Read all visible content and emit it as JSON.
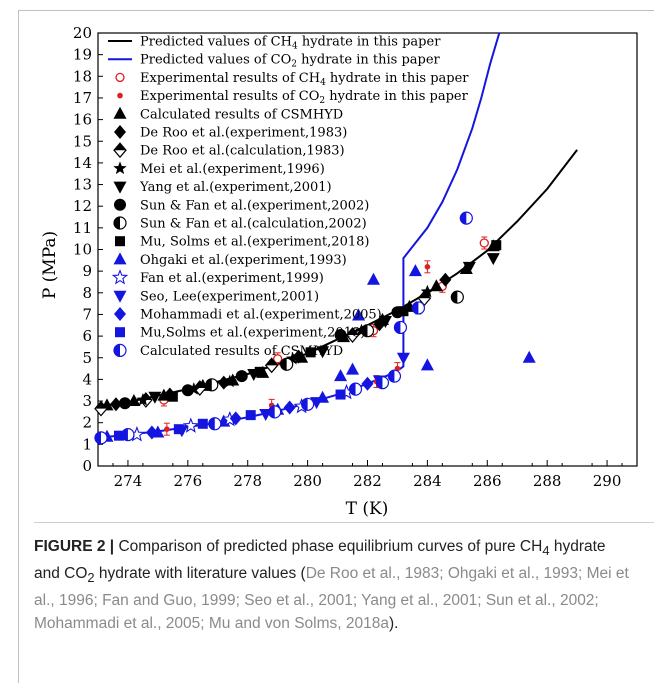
{
  "chart_data": {
    "type": "scatter",
    "xlabel": "T  (K)",
    "ylabel": "P  (MPa)",
    "xlim": [
      273,
      291
    ],
    "ylim": [
      0,
      20
    ],
    "xticks": [
      "274",
      "276",
      "278",
      "280",
      "282",
      "284",
      "286",
      "288",
      "290"
    ],
    "yticks": [
      "0",
      "1",
      "2",
      "3",
      "4",
      "5",
      "6",
      "7",
      "8",
      "9",
      "10",
      "11",
      "12",
      "13",
      "14",
      "15",
      "16",
      "17",
      "18",
      "19",
      "20"
    ],
    "legend_position": "top-left",
    "colors": {
      "ch4": "#000000",
      "co2": "#1515e0",
      "exp": "#e02020"
    },
    "lines": [
      {
        "name": "Predicted values of CH4 hydrate in this paper",
        "color": "#000000",
        "x": [
          273.0,
          274.0,
          275.0,
          276.0,
          277.0,
          278.0,
          279.0,
          280.0,
          281.0,
          282.0,
          283.0,
          284.0,
          285.0,
          286.0,
          287.0,
          288.0,
          289.0
        ],
        "y": [
          2.75,
          2.95,
          3.25,
          3.55,
          3.9,
          4.25,
          4.7,
          5.2,
          5.85,
          6.5,
          7.2,
          8.0,
          8.9,
          9.95,
          11.3,
          12.8,
          14.6
        ]
      },
      {
        "name": "Predicted values of CO2 hydrate in this paper",
        "color": "#1515e0",
        "x": [
          273.0,
          274.0,
          275.0,
          276.0,
          277.0,
          278.0,
          279.0,
          280.0,
          281.0,
          282.0,
          282.7,
          283.1,
          283.2,
          283.2,
          284.0,
          284.5,
          285.0,
          285.5,
          285.8,
          286.1,
          286.4
        ],
        "y": [
          1.3,
          1.45,
          1.6,
          1.8,
          2.0,
          2.25,
          2.55,
          2.9,
          3.3,
          3.8,
          4.2,
          4.5,
          4.6,
          9.6,
          11.0,
          12.2,
          13.7,
          15.6,
          17.0,
          18.6,
          20.0
        ]
      }
    ],
    "series": [
      {
        "name": "Experimental results of CH4 hydrate in this paper",
        "marker": "circle-open",
        "color": "#e02020",
        "x": [
          275.2,
          279.0,
          282.2,
          283.7,
          284.5,
          285.9
        ],
        "y": [
          3.05,
          4.95,
          6.25,
          7.3,
          8.3,
          10.3
        ]
      },
      {
        "name": "Experimental results of CO2 hydrate in this paper",
        "marker": "dot",
        "color": "#e02020",
        "x": [
          275.3,
          278.8,
          282.3,
          283.0,
          284.0
        ],
        "y": [
          1.7,
          2.8,
          3.9,
          4.5,
          9.2
        ]
      },
      {
        "name": "Calculated results of CSMHYD",
        "marker": "triangle-up",
        "color": "#000000",
        "x": [
          273.3,
          274.2,
          275.2,
          276.5,
          277.5,
          278.5,
          279.8,
          281.2,
          282.5,
          283.4,
          284.3,
          285.3,
          286.2
        ],
        "y": [
          2.8,
          3.0,
          3.25,
          3.7,
          3.95,
          4.3,
          5.0,
          5.95,
          6.75,
          7.35,
          8.3,
          9.1,
          10.15
        ]
      },
      {
        "name": "De Roo et al.(experiment,1983)",
        "marker": "diamond",
        "color": "#000000",
        "x": [
          273.6,
          275.4,
          277.2,
          279.7,
          282.4,
          284.6
        ],
        "y": [
          2.85,
          3.3,
          3.85,
          5.05,
          6.55,
          8.6
        ]
      },
      {
        "name": "De Roo et al.(calculation,1983)",
        "marker": "diamond-half",
        "color": "#000000",
        "x": [
          273.1,
          274.6,
          276.4,
          278.8,
          281.5,
          283.9
        ],
        "y": [
          2.65,
          3.05,
          3.6,
          4.65,
          6.05,
          7.75
        ]
      },
      {
        "name": "Mei et al.(experiment,1996)",
        "marker": "star",
        "color": "#000000",
        "x": [
          274.5,
          276.2,
          277.4,
          279.5,
          281.8,
          284.0
        ],
        "y": [
          3.05,
          3.55,
          3.9,
          4.95,
          6.25,
          8.05
        ]
      },
      {
        "name": "Yang et al.(experiment,2001)",
        "marker": "triangle-down",
        "color": "#000000",
        "x": [
          274.9,
          278.2,
          280.5,
          282.6,
          285.4,
          286.2
        ],
        "y": [
          3.2,
          4.25,
          5.3,
          6.7,
          9.2,
          9.6
        ]
      },
      {
        "name": "Sun & Fan et al.(experiment,2002)",
        "marker": "circle",
        "color": "#000000",
        "x": [
          273.9,
          276.0,
          277.8,
          281.1,
          283.0
        ],
        "y": [
          2.9,
          3.5,
          4.15,
          6.05,
          7.1
        ]
      },
      {
        "name": "Sun & Fan et al.(calculation,2002)",
        "marker": "circle-half",
        "color": "#000000",
        "x": [
          276.8,
          279.3,
          282.0,
          285.0
        ],
        "y": [
          3.75,
          4.7,
          6.25,
          7.8
        ]
      },
      {
        "name": "Mu, Solms et al.(experiment,2018)",
        "marker": "square",
        "color": "#000000",
        "x": [
          275.5,
          278.4,
          280.1,
          283.2,
          286.3
        ],
        "y": [
          3.2,
          4.35,
          5.25,
          7.15,
          10.2
        ]
      },
      {
        "name": "Ohgaki et al.(experiment,1993)",
        "marker": "triangle-up",
        "color": "#1515e0",
        "x": [
          273.3,
          275.0,
          277.2,
          279.0,
          280.5,
          281.1,
          281.5,
          281.7,
          282.2,
          283.6,
          284.0,
          287.4
        ],
        "y": [
          1.35,
          1.55,
          2.05,
          2.6,
          3.15,
          4.15,
          4.45,
          6.95,
          8.6,
          9.0,
          4.65,
          5.0
        ]
      },
      {
        "name": "Fan et al.(experiment,1999)",
        "marker": "star-open",
        "color": "#1515e0",
        "x": [
          274.3,
          276.1,
          277.4,
          279.8,
          281.3
        ],
        "y": [
          1.45,
          1.85,
          2.15,
          2.75,
          3.4
        ]
      },
      {
        "name": "Seo, Lee(experiment,2001)",
        "marker": "triangle-down",
        "color": "#1515e0",
        "x": [
          275.8,
          278.6,
          280.3,
          282.4,
          283.2
        ],
        "y": [
          1.65,
          2.4,
          2.95,
          3.95,
          5.0
        ]
      },
      {
        "name": "Mohammadi et al.(experiment,2005)",
        "marker": "diamond",
        "color": "#1515e0",
        "x": [
          274.8,
          277.6,
          279.4,
          282.0
        ],
        "y": [
          1.55,
          2.2,
          2.7,
          3.8
        ]
      },
      {
        "name": "Mu,Solms et al.(experiment,2018)",
        "marker": "square",
        "color": "#1515e0",
        "x": [
          273.7,
          275.7,
          276.5,
          278.1,
          281.1
        ],
        "y": [
          1.4,
          1.7,
          1.95,
          2.35,
          3.3
        ]
      },
      {
        "name": "Calculated results of CSMHYD",
        "marker": "circle-half",
        "color": "#1515e0",
        "x": [
          273.1,
          274.0,
          276.9,
          278.9,
          280.0,
          281.6,
          282.5,
          282.9,
          283.1,
          283.7,
          285.3
        ],
        "y": [
          1.3,
          1.45,
          1.95,
          2.5,
          2.85,
          3.55,
          3.85,
          4.15,
          6.4,
          7.3,
          11.45
        ]
      }
    ]
  },
  "legend": [
    {
      "kind": "line",
      "color": "#000000",
      "pre": "Predicted values of CH",
      "sub": "4",
      "post": " hydrate in this paper"
    },
    {
      "kind": "line",
      "color": "#1515e0",
      "pre": "Predicted values of CO",
      "sub": "2",
      "post": " hydrate in this paper"
    },
    {
      "kind": "marker",
      "marker": "circle-open",
      "color": "#e02020",
      "pre": "Experimental results of CH",
      "sub": "4",
      "post": " hydrate in this paper"
    },
    {
      "kind": "marker",
      "marker": "dot",
      "color": "#e02020",
      "pre": "Experimental results of CO",
      "sub": "2",
      "post": " hydrate in this paper"
    },
    {
      "kind": "marker",
      "marker": "triangle-up",
      "color": "#000000",
      "pre": "Calculated results of CSMHYD",
      "sub": "",
      "post": ""
    },
    {
      "kind": "marker",
      "marker": "diamond",
      "color": "#000000",
      "pre": "De Roo et al.(experiment,1983)",
      "sub": "",
      "post": ""
    },
    {
      "kind": "marker",
      "marker": "diamond-half",
      "color": "#000000",
      "pre": "De Roo et al.(calculation,1983)",
      "sub": "",
      "post": ""
    },
    {
      "kind": "marker",
      "marker": "star",
      "color": "#000000",
      "pre": "Mei et al.(experiment,1996)",
      "sub": "",
      "post": ""
    },
    {
      "kind": "marker",
      "marker": "triangle-down",
      "color": "#000000",
      "pre": "Yang et al.(experiment,2001)",
      "sub": "",
      "post": ""
    },
    {
      "kind": "marker",
      "marker": "circle",
      "color": "#000000",
      "pre": "Sun & Fan et al.(experiment,2002)",
      "sub": "",
      "post": ""
    },
    {
      "kind": "marker",
      "marker": "circle-half",
      "color": "#000000",
      "pre": "Sun & Fan et al.(calculation,2002)",
      "sub": "",
      "post": ""
    },
    {
      "kind": "marker",
      "marker": "square",
      "color": "#000000",
      "pre": "Mu, Solms et al.(experiment,2018)",
      "sub": "",
      "post": ""
    },
    {
      "kind": "marker",
      "marker": "triangle-up",
      "color": "#1515e0",
      "pre": "Ohgaki et al.(experiment,1993)",
      "sub": "",
      "post": ""
    },
    {
      "kind": "marker",
      "marker": "star-open",
      "color": "#1515e0",
      "pre": "Fan et al.(experiment,1999)",
      "sub": "",
      "post": ""
    },
    {
      "kind": "marker",
      "marker": "triangle-down",
      "color": "#1515e0",
      "pre": "Seo, Lee(experiment,2001)",
      "sub": "",
      "post": ""
    },
    {
      "kind": "marker",
      "marker": "diamond",
      "color": "#1515e0",
      "pre": "Mohammadi et al.(experiment,2005)",
      "sub": "",
      "post": ""
    },
    {
      "kind": "marker",
      "marker": "square",
      "color": "#1515e0",
      "pre": "Mu,Solms et al.(experiment,2018)",
      "sub": "",
      "post": ""
    },
    {
      "kind": "marker",
      "marker": "circle-half",
      "color": "#1515e0",
      "pre": "Calculated results of CSMHYD",
      "sub": "",
      "post": ""
    }
  ],
  "caption": {
    "label": "FIGURE 2 |",
    "t1": " Comparison of predicted phase equilibrium curves of pure CH",
    "s1": "4",
    "t2": " hydrate and CO",
    "s2": "2",
    "t3": " hydrate with literature values (",
    "cites": "De Roo et al., 1983; Ohgaki et al., 1993; Mei et al., 1996; Fan and Guo, 1999; Seo et al., 2001; Yang et al., 2001; Sun et al., 2002; Mohammadi et al., 2005; Mu and von Solms, 2018a",
    "t4": ")."
  }
}
